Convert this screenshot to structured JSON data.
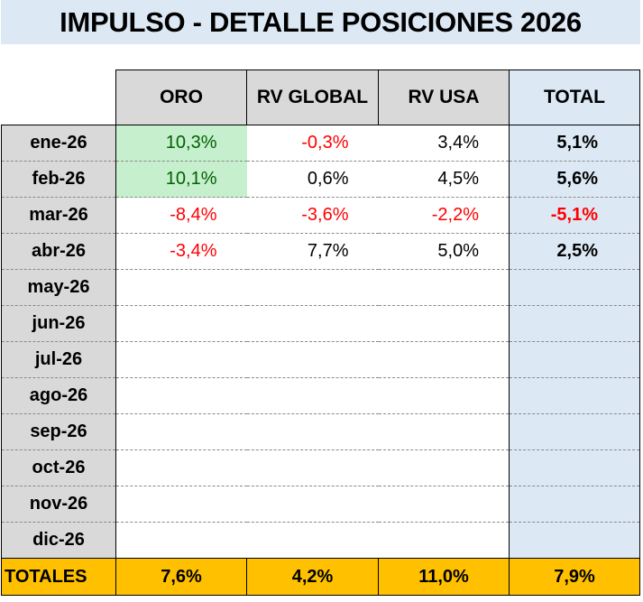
{
  "title": "IMPULSO - DETALLE POSICIONES 2026",
  "columns": [
    "ORO",
    "RV GLOBAL",
    "RV USA",
    "TOTAL"
  ],
  "rows": [
    {
      "label": "ene-26",
      "oro": "10,3%",
      "rv_global": "-0,3%",
      "rv_usa": "3,4%",
      "total": "5,1%"
    },
    {
      "label": "feb-26",
      "oro": "10,1%",
      "rv_global": "0,6%",
      "rv_usa": "4,5%",
      "total": "5,6%"
    },
    {
      "label": "mar-26",
      "oro": "-8,4%",
      "rv_global": "-3,6%",
      "rv_usa": "-2,2%",
      "total": "-5,1%"
    },
    {
      "label": "abr-26",
      "oro": "-3,4%",
      "rv_global": "7,7%",
      "rv_usa": "5,0%",
      "total": "2,5%"
    },
    {
      "label": "may-26",
      "oro": "",
      "rv_global": "",
      "rv_usa": "",
      "total": ""
    },
    {
      "label": "jun-26",
      "oro": "",
      "rv_global": "",
      "rv_usa": "",
      "total": ""
    },
    {
      "label": "jul-26",
      "oro": "",
      "rv_global": "",
      "rv_usa": "",
      "total": ""
    },
    {
      "label": "ago-26",
      "oro": "",
      "rv_global": "",
      "rv_usa": "",
      "total": ""
    },
    {
      "label": "sep-26",
      "oro": "",
      "rv_global": "",
      "rv_usa": "",
      "total": ""
    },
    {
      "label": "oct-26",
      "oro": "",
      "rv_global": "",
      "rv_usa": "",
      "total": ""
    },
    {
      "label": "nov-26",
      "oro": "",
      "rv_global": "",
      "rv_usa": "",
      "total": ""
    },
    {
      "label": "dic-26",
      "oro": "",
      "rv_global": "",
      "rv_usa": "",
      "total": ""
    }
  ],
  "totals": {
    "label": "TOTALES",
    "oro": "7,6%",
    "rv_global": "4,2%",
    "rv_usa": "11,0%",
    "total": "7,9%"
  },
  "colors": {
    "negative": "#ff0000",
    "highlight_fill": "#c6efce",
    "highlight_text": "#006100",
    "totals_fill": "#ffc000",
    "total_column_fill": "#dce9f5",
    "label_fill": "#d9d9d9"
  }
}
